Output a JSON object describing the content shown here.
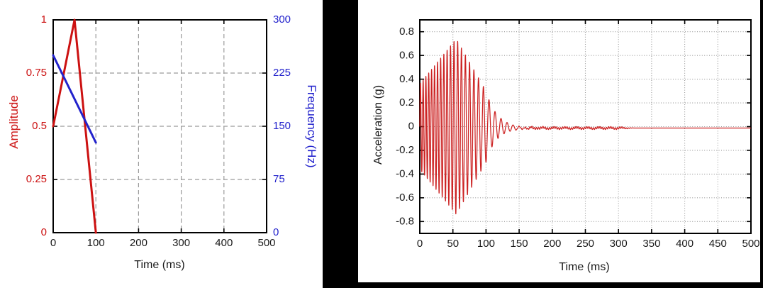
{
  "page": {
    "background_color": "#ffffff",
    "divider_color": "#000000",
    "description_left_panel": "amplitude and frequency profile chart",
    "description_right_panel": "acceleration time-history waveform chart"
  },
  "chart_data": [
    {
      "id": "amplitude-frequency-profile",
      "type": "line",
      "title": "",
      "xlabel": "Time (ms)",
      "ylabel": "Amplitude",
      "y2label": "Frequency (Hz)",
      "xlim": [
        0,
        500
      ],
      "ylim": [
        0,
        1
      ],
      "y2lim": [
        0,
        300
      ],
      "x_ticks": [
        0,
        100,
        200,
        300,
        400,
        500
      ],
      "x_tick_labels": [
        "0",
        "100",
        "200",
        "300",
        "400",
        "500"
      ],
      "y_ticks": [
        0,
        0.25,
        0.5,
        0.75,
        1
      ],
      "y_tick_labels": [
        "0",
        "0.25",
        "0.5",
        "0.75",
        "1"
      ],
      "y2_ticks": [
        0,
        75,
        150,
        225,
        300
      ],
      "y2_tick_labels": [
        "0",
        "75",
        "150",
        "225",
        "300"
      ],
      "grid": "dashed",
      "legend": "none",
      "colors": {
        "amplitude_series": "#cc1111",
        "frequency_series": "#2222cc",
        "frame": "#000000",
        "grid": "#9a9a9a",
        "x_tick_text": "#1a1a1a",
        "y_tick_text": "#cc1111",
        "y2_tick_text": "#2222cc"
      },
      "series": [
        {
          "name": "Amplitude",
          "axis": "y",
          "color": "#cc1111",
          "line_width": 3,
          "points": [
            [
              0,
              0.5
            ],
            [
              50,
              1.0
            ],
            [
              100,
              0
            ]
          ]
        },
        {
          "name": "Frequency",
          "axis": "y2",
          "color": "#2222cc",
          "line_width": 3,
          "points": [
            [
              0,
              250
            ],
            [
              100,
              127
            ]
          ]
        }
      ]
    },
    {
      "id": "acceleration-waveform",
      "type": "line",
      "title": "",
      "xlabel": "Time (ms)",
      "ylabel": "Acceleration (g)",
      "xlim": [
        0,
        500
      ],
      "ylim": [
        -0.9,
        0.9
      ],
      "x_ticks": [
        0,
        50,
        100,
        150,
        200,
        250,
        300,
        350,
        400,
        450,
        500
      ],
      "x_tick_labels": [
        "0",
        "50",
        "100",
        "150",
        "200",
        "250",
        "300",
        "350",
        "400",
        "450",
        "500"
      ],
      "y_ticks": [
        -0.8,
        -0.6,
        -0.4,
        -0.2,
        0,
        0.2,
        0.4,
        0.6,
        0.8
      ],
      "y_tick_labels": [
        "-0.8",
        "-0.6",
        "-0.4",
        "-0.2",
        "0",
        "0.2",
        "0.4",
        "0.6",
        "0.8"
      ],
      "grid": "dotted",
      "legend": "none",
      "colors": {
        "acceleration_series": "#cc2222",
        "frame": "#000000",
        "grid": "#9a9a9a",
        "tick_text": "#1a1a1a"
      },
      "series": [
        {
          "name": "Acceleration",
          "color": "#cc2222",
          "line_width": 1.25,
          "signal_model": {
            "kind": "linear-sine-sweep-burst-with-ringdown",
            "sweep_start_hz": 250,
            "sweep_end_hz": 125,
            "sweep_start_ms": 0,
            "sweep_end_ms": 100,
            "envelope_breakpoints_g": [
              [
                0,
                0.36
              ],
              [
                55,
                0.74
              ],
              [
                100,
                0.3
              ]
            ],
            "peak_acceleration_g": 0.74,
            "peak_time_ms": 57,
            "ringdown_freq_hz": 110,
            "ringdown_tau_ms": 16,
            "noise_band_g": 0.013,
            "noise_start_ms": 140,
            "noise_end_ms": 325,
            "tail_dc_offset_g": -0.012,
            "sample_step_ms": 0.1
          }
        }
      ]
    }
  ]
}
